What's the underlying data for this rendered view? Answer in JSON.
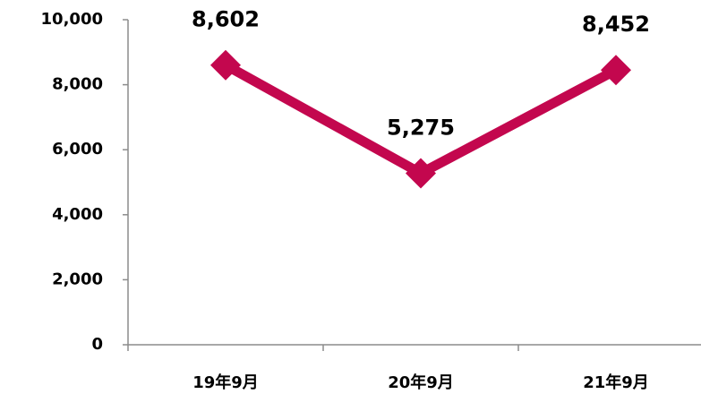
{
  "chart_data": {
    "type": "line",
    "categories": [
      "19年9月",
      "20年9月",
      "21年9月"
    ],
    "values": [
      8602,
      5275,
      8452
    ],
    "value_labels": [
      "8,602",
      "5,275",
      "8,452"
    ],
    "color": "#c3074e",
    "ylim": [
      0,
      10000
    ],
    "yticks": [
      0,
      {
        "value": 2000,
        "label": "2,000"
      },
      {
        "value": 4000,
        "label": "4,000"
      },
      {
        "value": 6000,
        "label": "6,000"
      },
      {
        "value": 8000,
        "label": "8,000"
      },
      {
        "value": 10000,
        "label": "10,000"
      }
    ],
    "grid": false
  }
}
